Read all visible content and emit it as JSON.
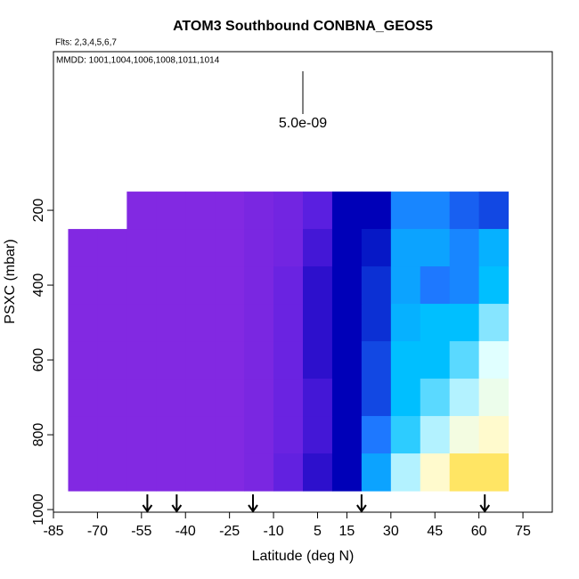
{
  "chart_data": {
    "type": "heatmap",
    "title": "ATOM3 Southbound CONBNA_GEOS5",
    "subtitle": "Flts: 2,3,4,5,6,7",
    "annotation": "MMDD: 1001,1004,1006,1008,1011,1014",
    "xlabel": "Latitude (deg N)",
    "ylabel": "PSXC (mbar)",
    "xlim": [
      -85,
      85
    ],
    "ylim": [
      1007,
      -224
    ],
    "xticks": [
      -85,
      -70,
      -55,
      -40,
      -25,
      -10,
      5,
      15,
      30,
      45,
      60,
      75
    ],
    "yticks": [
      200,
      400,
      600,
      800,
      1000
    ],
    "lat_bins": [
      -80,
      -70,
      -60,
      -50,
      -40,
      -30,
      -20,
      -10,
      0,
      10,
      20,
      30,
      40,
      50,
      60,
      70
    ],
    "p_bins": [
      150,
      250,
      350,
      450,
      550,
      650,
      750,
      850,
      950
    ],
    "z": [
      [
        null,
        null,
        4.1e-09,
        4.1e-09,
        4.1e-09,
        4.1e-09,
        4.2e-09,
        4.3e-09,
        4.6e-09,
        5e-09,
        5e-09,
        5.6e-09,
        5.6e-09,
        5.4e-09,
        5.3e-09
      ],
      [
        4.1e-09,
        4.1e-09,
        4.1e-09,
        4.1e-09,
        4.1e-09,
        4.1e-09,
        4.2e-09,
        4.3e-09,
        4.7e-09,
        5e-09,
        5.1e-09,
        5.8e-09,
        5.8e-09,
        5.6e-09,
        5.9e-09
      ],
      [
        4.1e-09,
        4.1e-09,
        4.1e-09,
        4.1e-09,
        4.1e-09,
        4.1e-09,
        4.2e-09,
        4.4e-09,
        4.8e-09,
        5e-09,
        5.2e-09,
        5.8e-09,
        5.5e-09,
        5.6e-09,
        6e-09
      ],
      [
        4.1e-09,
        4.1e-09,
        4.1e-09,
        4.1e-09,
        4.1e-09,
        4.1e-09,
        4.2e-09,
        4.4e-09,
        4.8e-09,
        5e-09,
        5.2e-09,
        5.9e-09,
        6e-09,
        6e-09,
        6.3e-09
      ],
      [
        4.1e-09,
        4.1e-09,
        4.1e-09,
        4.1e-09,
        4.1e-09,
        4.1e-09,
        4.2e-09,
        4.4e-09,
        4.8e-09,
        5e-09,
        5.3e-09,
        6e-09,
        6e-09,
        6.2e-09,
        6.5e-09
      ],
      [
        4.1e-09,
        4.1e-09,
        4.1e-09,
        4.1e-09,
        4.1e-09,
        4.1e-09,
        4.2e-09,
        4.4e-09,
        4.7e-09,
        5e-09,
        5.3e-09,
        6e-09,
        6.2e-09,
        6.4e-09,
        6.7e-09
      ],
      [
        4.1e-09,
        4.1e-09,
        4.1e-09,
        4.1e-09,
        4.1e-09,
        4.1e-09,
        4.2e-09,
        4.4e-09,
        4.7e-09,
        5e-09,
        5.5e-09,
        6.1e-09,
        6.4e-09,
        6.8e-09,
        7e-09
      ],
      [
        4.1e-09,
        4.1e-09,
        4.1e-09,
        4.1e-09,
        4.1e-09,
        4.1e-09,
        4.2e-09,
        4.5e-09,
        4.8e-09,
        5e-09,
        5.8e-09,
        6.4e-09,
        7e-09,
        7.4e-09,
        7.4e-09
      ]
    ],
    "color_scale": [
      {
        "value": 4e-09,
        "color": "#8a2be2"
      },
      {
        "value": 4.6e-09,
        "color": "#5a1fe0"
      },
      {
        "value": 5e-09,
        "color": "#0000b8"
      },
      {
        "value": 5.5e-09,
        "color": "#1e78ff"
      },
      {
        "value": 6e-09,
        "color": "#00bfff"
      },
      {
        "value": 6.5e-09,
        "color": "#e0ffff"
      },
      {
        "value": 7e-09,
        "color": "#fffacd"
      },
      {
        "value": 7.5e-09,
        "color": "#ffe04a"
      }
    ],
    "colorbar_ticks": [
      {
        "value": 5e-09,
        "label": "5.0e-09"
      }
    ],
    "flight_markers": [
      -53,
      -43,
      -17,
      20,
      62
    ]
  }
}
